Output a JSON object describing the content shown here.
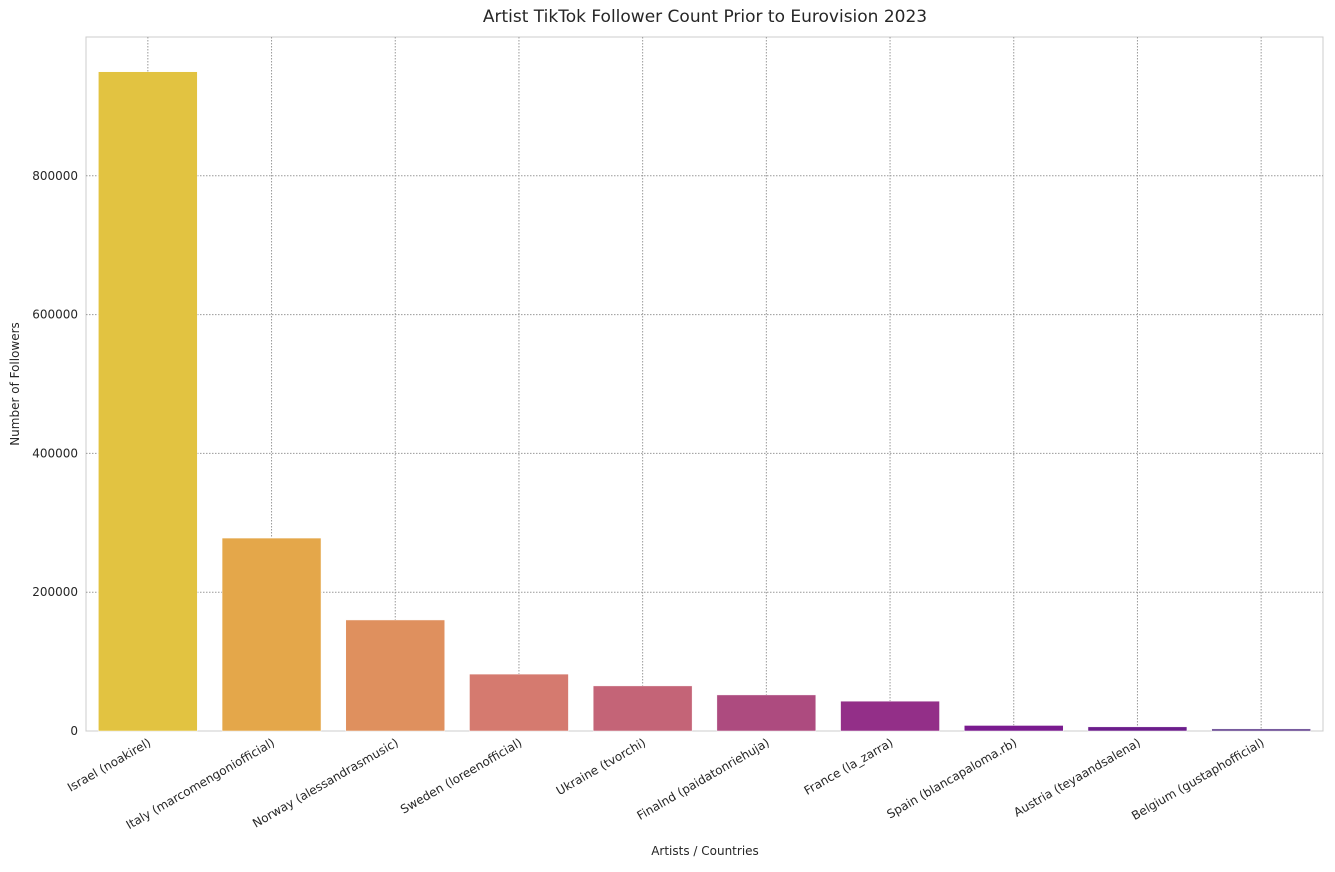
{
  "chart_data": {
    "type": "bar",
    "title": "Artist TikTok Follower Count Prior to Eurovision 2023",
    "xlabel": "Artists / Countries",
    "ylabel": "Number of Followers",
    "ylim": [
      0,
      1000000
    ],
    "yticks": [
      0,
      200000,
      400000,
      600000,
      800000
    ],
    "grid": true,
    "categories": [
      "Israel (noakirel)",
      "Italy (marcomengoniofficial)",
      "Norway (alessandrasmusic)",
      "Sweden (loreenofficial)",
      "Ukraine (tvorchi)",
      "Finalnd (paidatonriehuja)",
      "France (la_zarra)",
      "Spain (blancapaloma.rb)",
      "Austria (teyaandsalena)",
      "Belgium (gustaphofficial)"
    ],
    "values": [
      950000,
      278000,
      160000,
      82000,
      65000,
      52000,
      43000,
      8000,
      6000,
      3000
    ],
    "colors": [
      "#e2c341",
      "#e4a74a",
      "#df905e",
      "#d57a6f",
      "#c46477",
      "#ad4b7f",
      "#932f88",
      "#7a1b8f",
      "#6b1d8b",
      "#5d3a8a"
    ]
  }
}
